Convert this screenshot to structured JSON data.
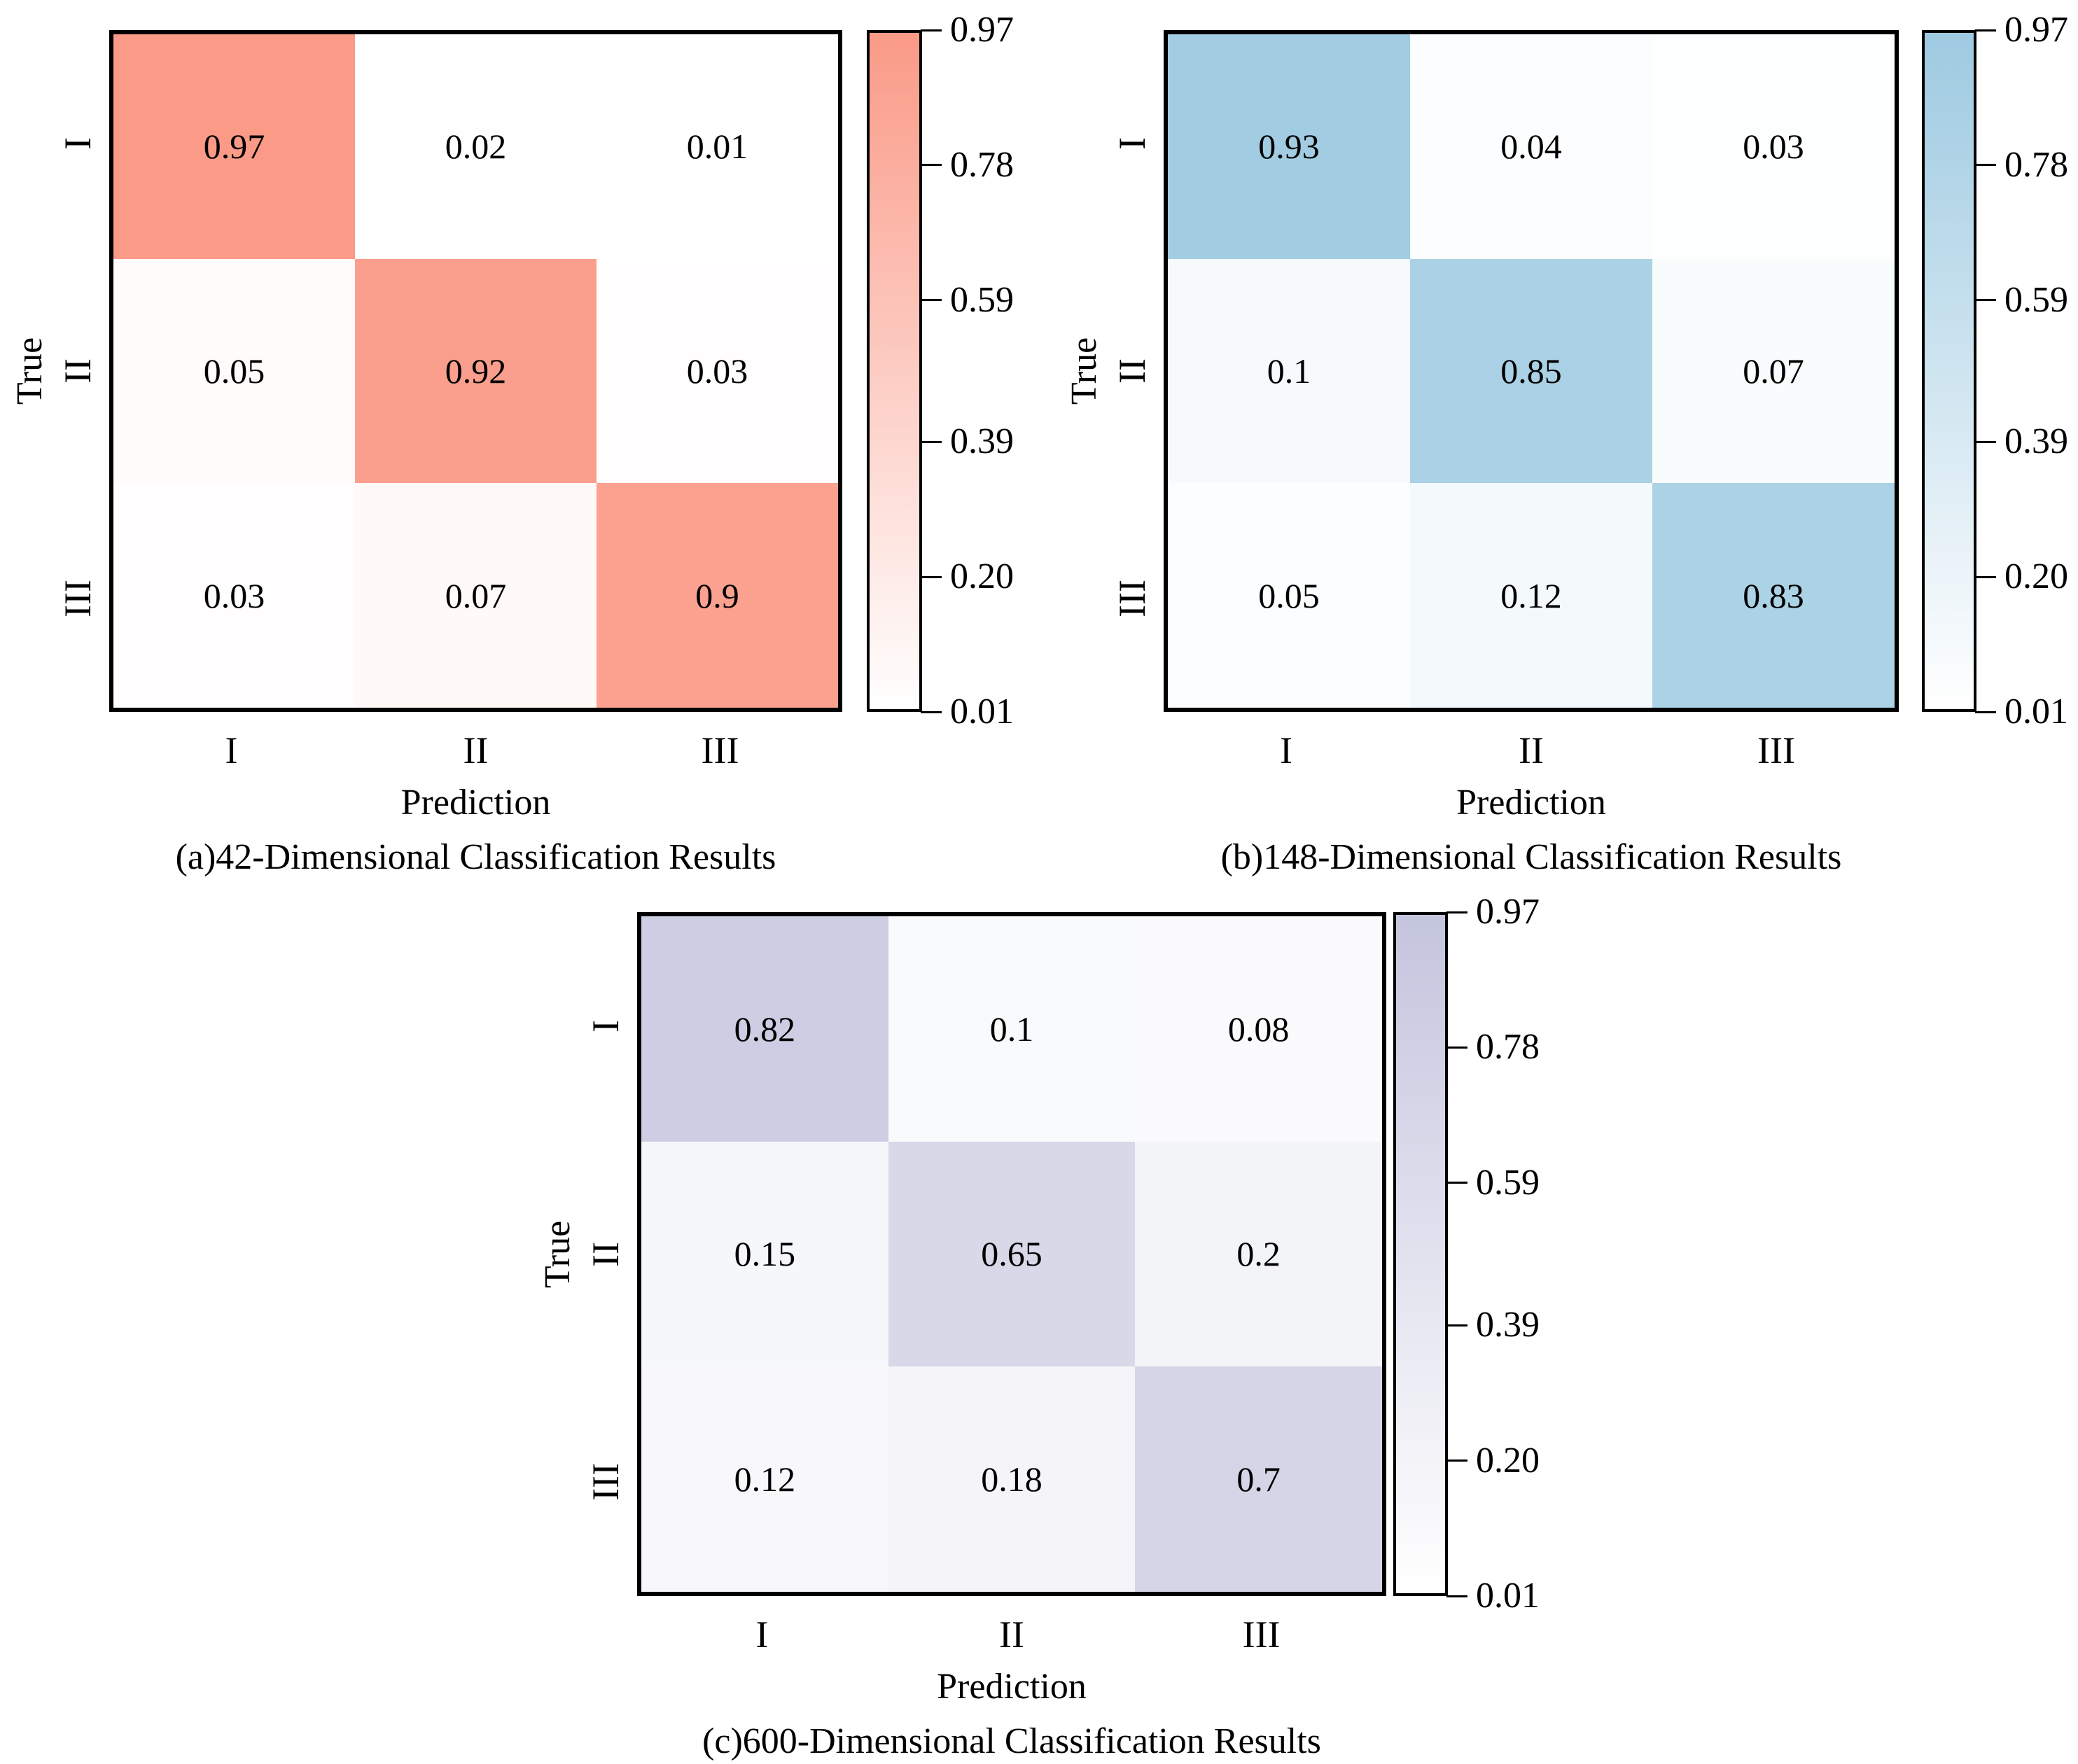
{
  "figure": {
    "background_color": "#FFFFFF",
    "text_color": "#000000"
  },
  "chart_data": [
    {
      "type": "heatmap",
      "id": "a",
      "caption": "(a)42-Dimensional Classification Results",
      "xlabel": "Prediction",
      "ylabel": "True",
      "x_categories": [
        "I",
        "II",
        "III"
      ],
      "y_categories": [
        "I",
        "II",
        "III"
      ],
      "values": [
        [
          0.97,
          0.02,
          0.01
        ],
        [
          0.05,
          0.92,
          0.03
        ],
        [
          0.03,
          0.07,
          0.9
        ]
      ],
      "cell_labels": [
        [
          "0.97",
          "0.02",
          "0.01"
        ],
        [
          "0.05",
          "0.92",
          "0.03"
        ],
        [
          "0.03",
          "0.07",
          "0.9"
        ]
      ],
      "vmin": 0.01,
      "vmax": 0.97,
      "colormap_top_color": "#FA9A87",
      "colormap_bottom_color": "#FFFFFF",
      "colorbar_tick_values": [
        0.97,
        0.78,
        0.59,
        0.39,
        0.2,
        0.01
      ],
      "colorbar_tick_labels": [
        "0.97",
        "0.78",
        "0.59",
        "0.39",
        "0.20",
        "0.01"
      ],
      "legend_position": "right-colorbar",
      "grid": false
    },
    {
      "type": "heatmap",
      "id": "b",
      "caption": "(b)148-Dimensional Classification Results",
      "xlabel": "Prediction",
      "ylabel": "True",
      "x_categories": [
        "I",
        "II",
        "III"
      ],
      "y_categories": [
        "I",
        "II",
        "III"
      ],
      "values": [
        [
          0.93,
          0.04,
          0.03
        ],
        [
          0.1,
          0.85,
          0.07
        ],
        [
          0.05,
          0.12,
          0.83
        ]
      ],
      "cell_labels": [
        [
          "0.93",
          "0.04",
          "0.03"
        ],
        [
          "0.1",
          "0.85",
          "0.07"
        ],
        [
          "0.05",
          "0.12",
          "0.83"
        ]
      ],
      "vmin": 0.01,
      "vmax": 0.97,
      "colormap_top_color": "#9ECAE1",
      "colormap_bottom_color": "#FFFFFF",
      "colorbar_tick_values": [
        0.97,
        0.78,
        0.59,
        0.39,
        0.2,
        0.01
      ],
      "colorbar_tick_labels": [
        "0.97",
        "0.78",
        "0.59",
        "0.39",
        "0.20",
        "0.01"
      ],
      "legend_position": "right-colorbar",
      "grid": false
    },
    {
      "type": "heatmap",
      "id": "c",
      "caption": "(c)600-Dimensional Classification Results",
      "xlabel": "Prediction",
      "ylabel": "True",
      "x_categories": [
        "I",
        "II",
        "III"
      ],
      "y_categories": [
        "I",
        "II",
        "III"
      ],
      "values": [
        [
          0.82,
          0.1,
          0.08
        ],
        [
          0.15,
          0.65,
          0.2
        ],
        [
          0.12,
          0.18,
          0.7
        ]
      ],
      "cell_labels": [
        [
          "0.82",
          "0.1",
          "0.08"
        ],
        [
          "0.15",
          "0.65",
          "0.2"
        ],
        [
          "0.12",
          "0.18",
          "0.7"
        ]
      ],
      "vmin": 0.01,
      "vmax": 0.97,
      "colormap_top_color": "#C4C5DE",
      "colormap_bottom_color": "#FFFFFF",
      "colorbar_tick_values": [
        0.97,
        0.78,
        0.59,
        0.39,
        0.2,
        0.01
      ],
      "colorbar_tick_labels": [
        "0.97",
        "0.78",
        "0.59",
        "0.39",
        "0.20",
        "0.01"
      ],
      "legend_position": "right-colorbar",
      "grid": false
    }
  ]
}
